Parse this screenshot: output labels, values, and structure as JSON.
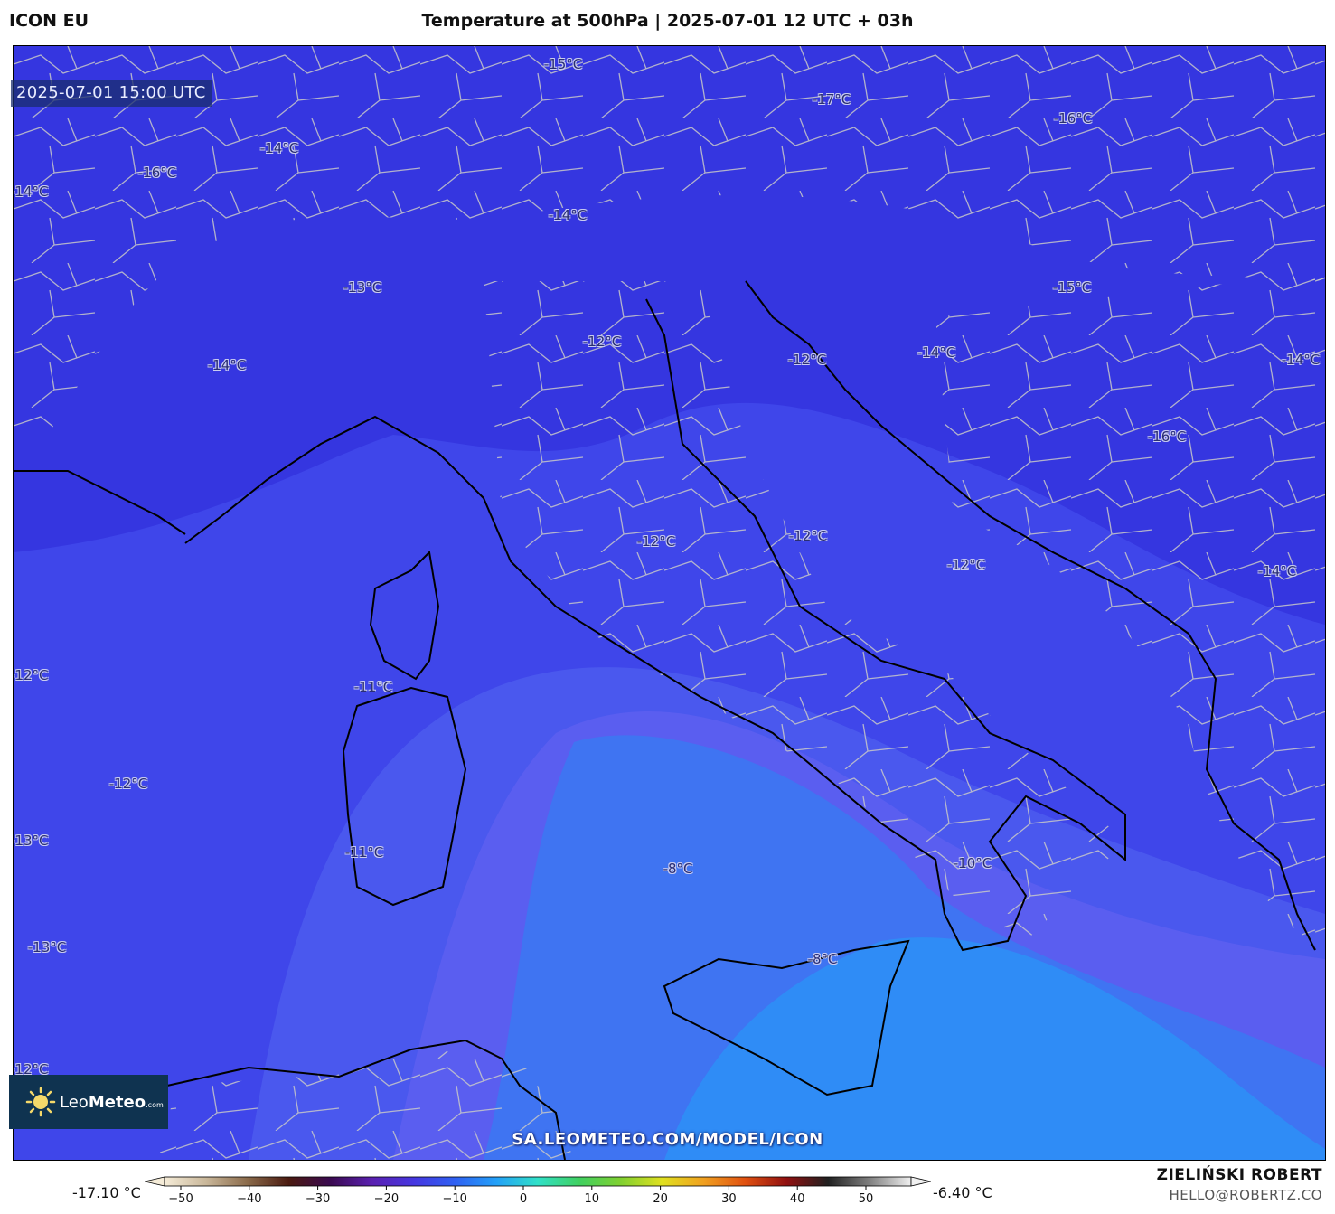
{
  "header": {
    "model": "ICON EU",
    "title": "Temperature at 500hPa | 2025-07-01 12 UTC + 03h"
  },
  "map": {
    "valid_time": "2025-07-01 15:00 UTC",
    "source_url": "SA.LEOMETEO.COM/MODEL/ICON",
    "colors": {
      "cold": "#3536e0",
      "mid": "#4a58ee",
      "warm": "#3f74f2",
      "warmest": "#2f8cf6",
      "border": "#c8c8c8",
      "coast": "#000000"
    },
    "labels": [
      {
        "text": "-15°C"
      },
      {
        "text": "-17°C"
      },
      {
        "text": "-16°C"
      },
      {
        "text": "-14°C"
      },
      {
        "text": "-16°C"
      },
      {
        "text": "-14°C"
      },
      {
        "text": "-14°C"
      },
      {
        "text": "-13°C"
      },
      {
        "text": "-15°C"
      },
      {
        "text": "-12°C"
      },
      {
        "text": "-14°C"
      },
      {
        "text": "-12°C"
      },
      {
        "text": "-14°C"
      },
      {
        "text": "-14°C"
      },
      {
        "text": "-16°C"
      },
      {
        "text": "-12°C"
      },
      {
        "text": "-12°C"
      },
      {
        "text": "-12°C"
      },
      {
        "text": "-14°C"
      },
      {
        "text": "-12°C"
      },
      {
        "text": "-11°C"
      },
      {
        "text": "-12°C"
      },
      {
        "text": "-13°C"
      },
      {
        "text": "-11°C"
      },
      {
        "text": "-8°C"
      },
      {
        "text": "-10°C"
      },
      {
        "text": "-13°C"
      },
      {
        "text": "-8°C"
      },
      {
        "text": "-12°C"
      }
    ]
  },
  "logo": {
    "brand": "Leo",
    "brand_bold": "Meteo",
    "suffix": ".com"
  },
  "colorbar": {
    "min_label": "-17.10 °C",
    "max_label": "-6.40 °C",
    "ticks": [
      "−50",
      "−40",
      "−30",
      "−20",
      "−10",
      "0",
      "10",
      "20",
      "30",
      "40",
      "50"
    ],
    "stops": [
      "#f5ecd8",
      "#c9b79a",
      "#8a6a4a",
      "#4a1a10",
      "#3a0a50",
      "#5a20b0",
      "#4636e0",
      "#2f60f2",
      "#23a0f8",
      "#30e0c8",
      "#40d060",
      "#80d030",
      "#e0e020",
      "#f0a020",
      "#e05010",
      "#901010",
      "#202020",
      "#808080",
      "#f0f0f0"
    ]
  },
  "credits": {
    "author": "ZIELIŃSKI ROBERT",
    "email": "HELLO@ROBERTZ.CO"
  }
}
